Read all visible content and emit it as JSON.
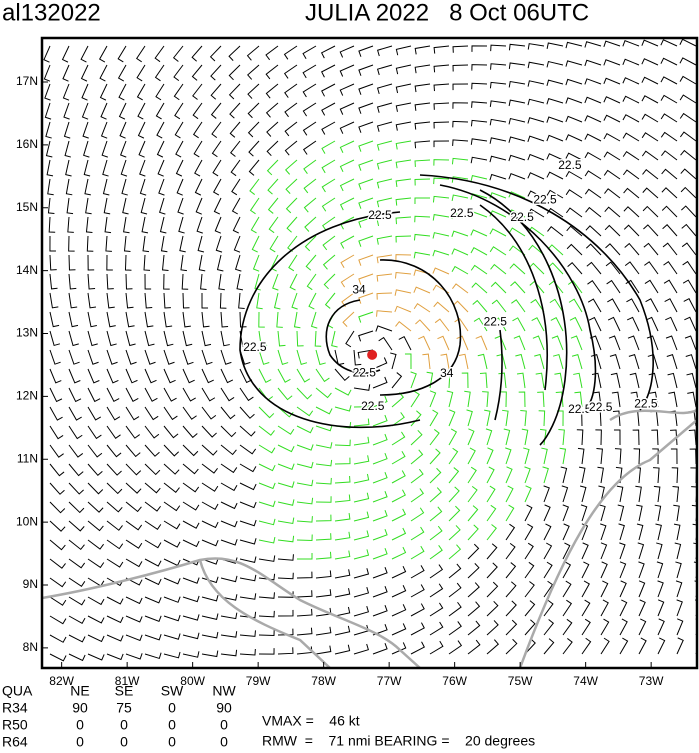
{
  "header": {
    "storm_id": "al132022",
    "title": "JULIA 2022   8 Oct 06UTC"
  },
  "map": {
    "lonlim": [
      -82.3,
      -72.3
    ],
    "latlim": [
      7.68,
      17.7
    ],
    "lat_ticks": [
      {
        "value": 8,
        "label": "8N"
      },
      {
        "value": 9,
        "label": "9N"
      },
      {
        "value": 10,
        "label": "10N"
      },
      {
        "value": 11,
        "label": "11N"
      },
      {
        "value": 12,
        "label": "12N"
      },
      {
        "value": 13,
        "label": "13N"
      },
      {
        "value": 14,
        "label": "14N"
      },
      {
        "value": 15,
        "label": "15N"
      },
      {
        "value": 16,
        "label": "16N"
      },
      {
        "value": 17,
        "label": "17N"
      }
    ],
    "lon_ticks": [
      {
        "value": -82,
        "label": "82W"
      },
      {
        "value": -81,
        "label": "81W"
      },
      {
        "value": -80,
        "label": "80W"
      },
      {
        "value": -79,
        "label": "79W"
      },
      {
        "value": -78,
        "label": "78W"
      },
      {
        "value": -77,
        "label": "77W"
      },
      {
        "value": -76,
        "label": "76W"
      },
      {
        "value": -75,
        "label": "75W"
      },
      {
        "value": -74,
        "label": "74W"
      },
      {
        "value": -73,
        "label": "73W"
      }
    ],
    "center": {
      "lon": -77.26,
      "lat": 12.66
    },
    "contour_labels": [
      {
        "text": "22.5",
        "lon": -74.24,
        "lat": 15.67
      },
      {
        "text": "22.5",
        "lon": -74.62,
        "lat": 15.12
      },
      {
        "text": "22.5",
        "lon": -75.89,
        "lat": 14.9
      },
      {
        "text": "22.5",
        "lon": -77.14,
        "lat": 14.87
      },
      {
        "text": "22.5",
        "lon": -74.97,
        "lat": 14.84
      },
      {
        "text": "22.5",
        "lon": -75.38,
        "lat": 13.18
      },
      {
        "text": "22.5",
        "lon": -79.05,
        "lat": 12.77
      },
      {
        "text": "22.5",
        "lon": -77.38,
        "lat": 12.37
      },
      {
        "text": "22.5",
        "lon": -77.25,
        "lat": 11.83
      },
      {
        "text": "22.5",
        "lon": -74.09,
        "lat": 11.79
      },
      {
        "text": "22.5",
        "lon": -73.77,
        "lat": 11.82
      },
      {
        "text": "22.5",
        "lon": -73.08,
        "lat": 11.87
      },
      {
        "text": "34",
        "lon": -77.46,
        "lat": 13.69
      },
      {
        "text": "34",
        "lon": -76.12,
        "lat": 12.36
      }
    ]
  },
  "table": {
    "rows": [
      [
        "QUA",
        "NE",
        "SE",
        "SW",
        "NW"
      ],
      [
        "R34",
        "90",
        "75",
        "0",
        "90"
      ],
      [
        "R50",
        "0",
        "0",
        "0",
        "0"
      ],
      [
        "R64",
        "0",
        "0",
        "0",
        "0"
      ]
    ]
  },
  "summary": {
    "vmax": "VMAX =    46 kt",
    "rmw": "RMW  =    71 nmi BEARING =    20 degrees"
  }
}
